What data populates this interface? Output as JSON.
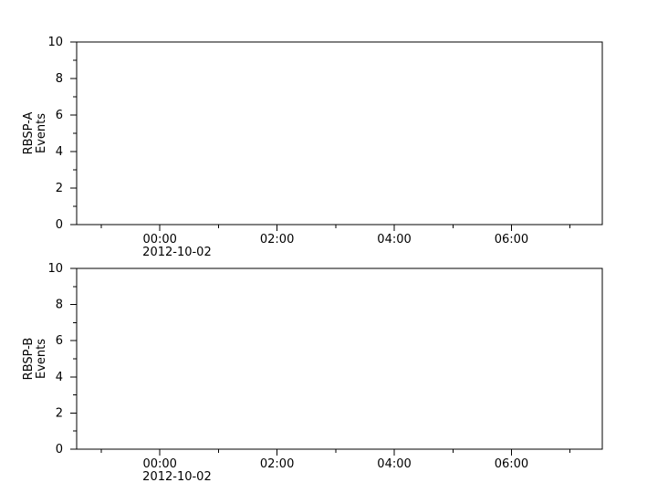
{
  "figure": {
    "background": "#ffffff",
    "axis_color": "#000000",
    "text_color": "#000000"
  },
  "chart_data": [
    {
      "id": "rbsp-a",
      "type": "line",
      "title": "",
      "ylabel": "RBSP-A\nEvents",
      "ylabel_lines": [
        "RBSP-A",
        "Events"
      ],
      "ylim": [
        0,
        10
      ],
      "yticks_major": [
        0,
        2,
        4,
        6,
        8,
        10
      ],
      "ytick_labels": [
        "0",
        "2",
        "4",
        "6",
        "8",
        "10"
      ],
      "yticks_minor": [
        1,
        3,
        5,
        7,
        9
      ],
      "grid": false,
      "legend": false,
      "x_axis": {
        "xlim_hours": [
          -1.42,
          7.55
        ],
        "major_ticks": [
          {
            "hour": 0,
            "label": "00:00",
            "date_label": "2012-10-02"
          },
          {
            "hour": 2,
            "label": "02:00"
          },
          {
            "hour": 4,
            "label": "04:00"
          },
          {
            "hour": 6,
            "label": "06:00"
          }
        ],
        "minor_tick_hours": [
          -1,
          1,
          3,
          5,
          7
        ]
      },
      "series": []
    },
    {
      "id": "rbsp-b",
      "type": "line",
      "title": "",
      "ylabel": "RBSP-B\nEvents",
      "ylabel_lines": [
        "RBSP-B",
        "Events"
      ],
      "ylim": [
        0,
        10
      ],
      "yticks_major": [
        0,
        2,
        4,
        6,
        8,
        10
      ],
      "ytick_labels": [
        "0",
        "2",
        "4",
        "6",
        "8",
        "10"
      ],
      "yticks_minor": [
        1,
        3,
        5,
        7,
        9
      ],
      "grid": false,
      "legend": false,
      "x_axis": {
        "xlim_hours": [
          -1.42,
          7.55
        ],
        "major_ticks": [
          {
            "hour": 0,
            "label": "00:00",
            "date_label": "2012-10-02"
          },
          {
            "hour": 2,
            "label": "02:00"
          },
          {
            "hour": 4,
            "label": "04:00"
          },
          {
            "hour": 6,
            "label": "06:00"
          }
        ],
        "minor_tick_hours": [
          -1,
          1,
          3,
          5,
          7
        ]
      },
      "series": []
    }
  ]
}
